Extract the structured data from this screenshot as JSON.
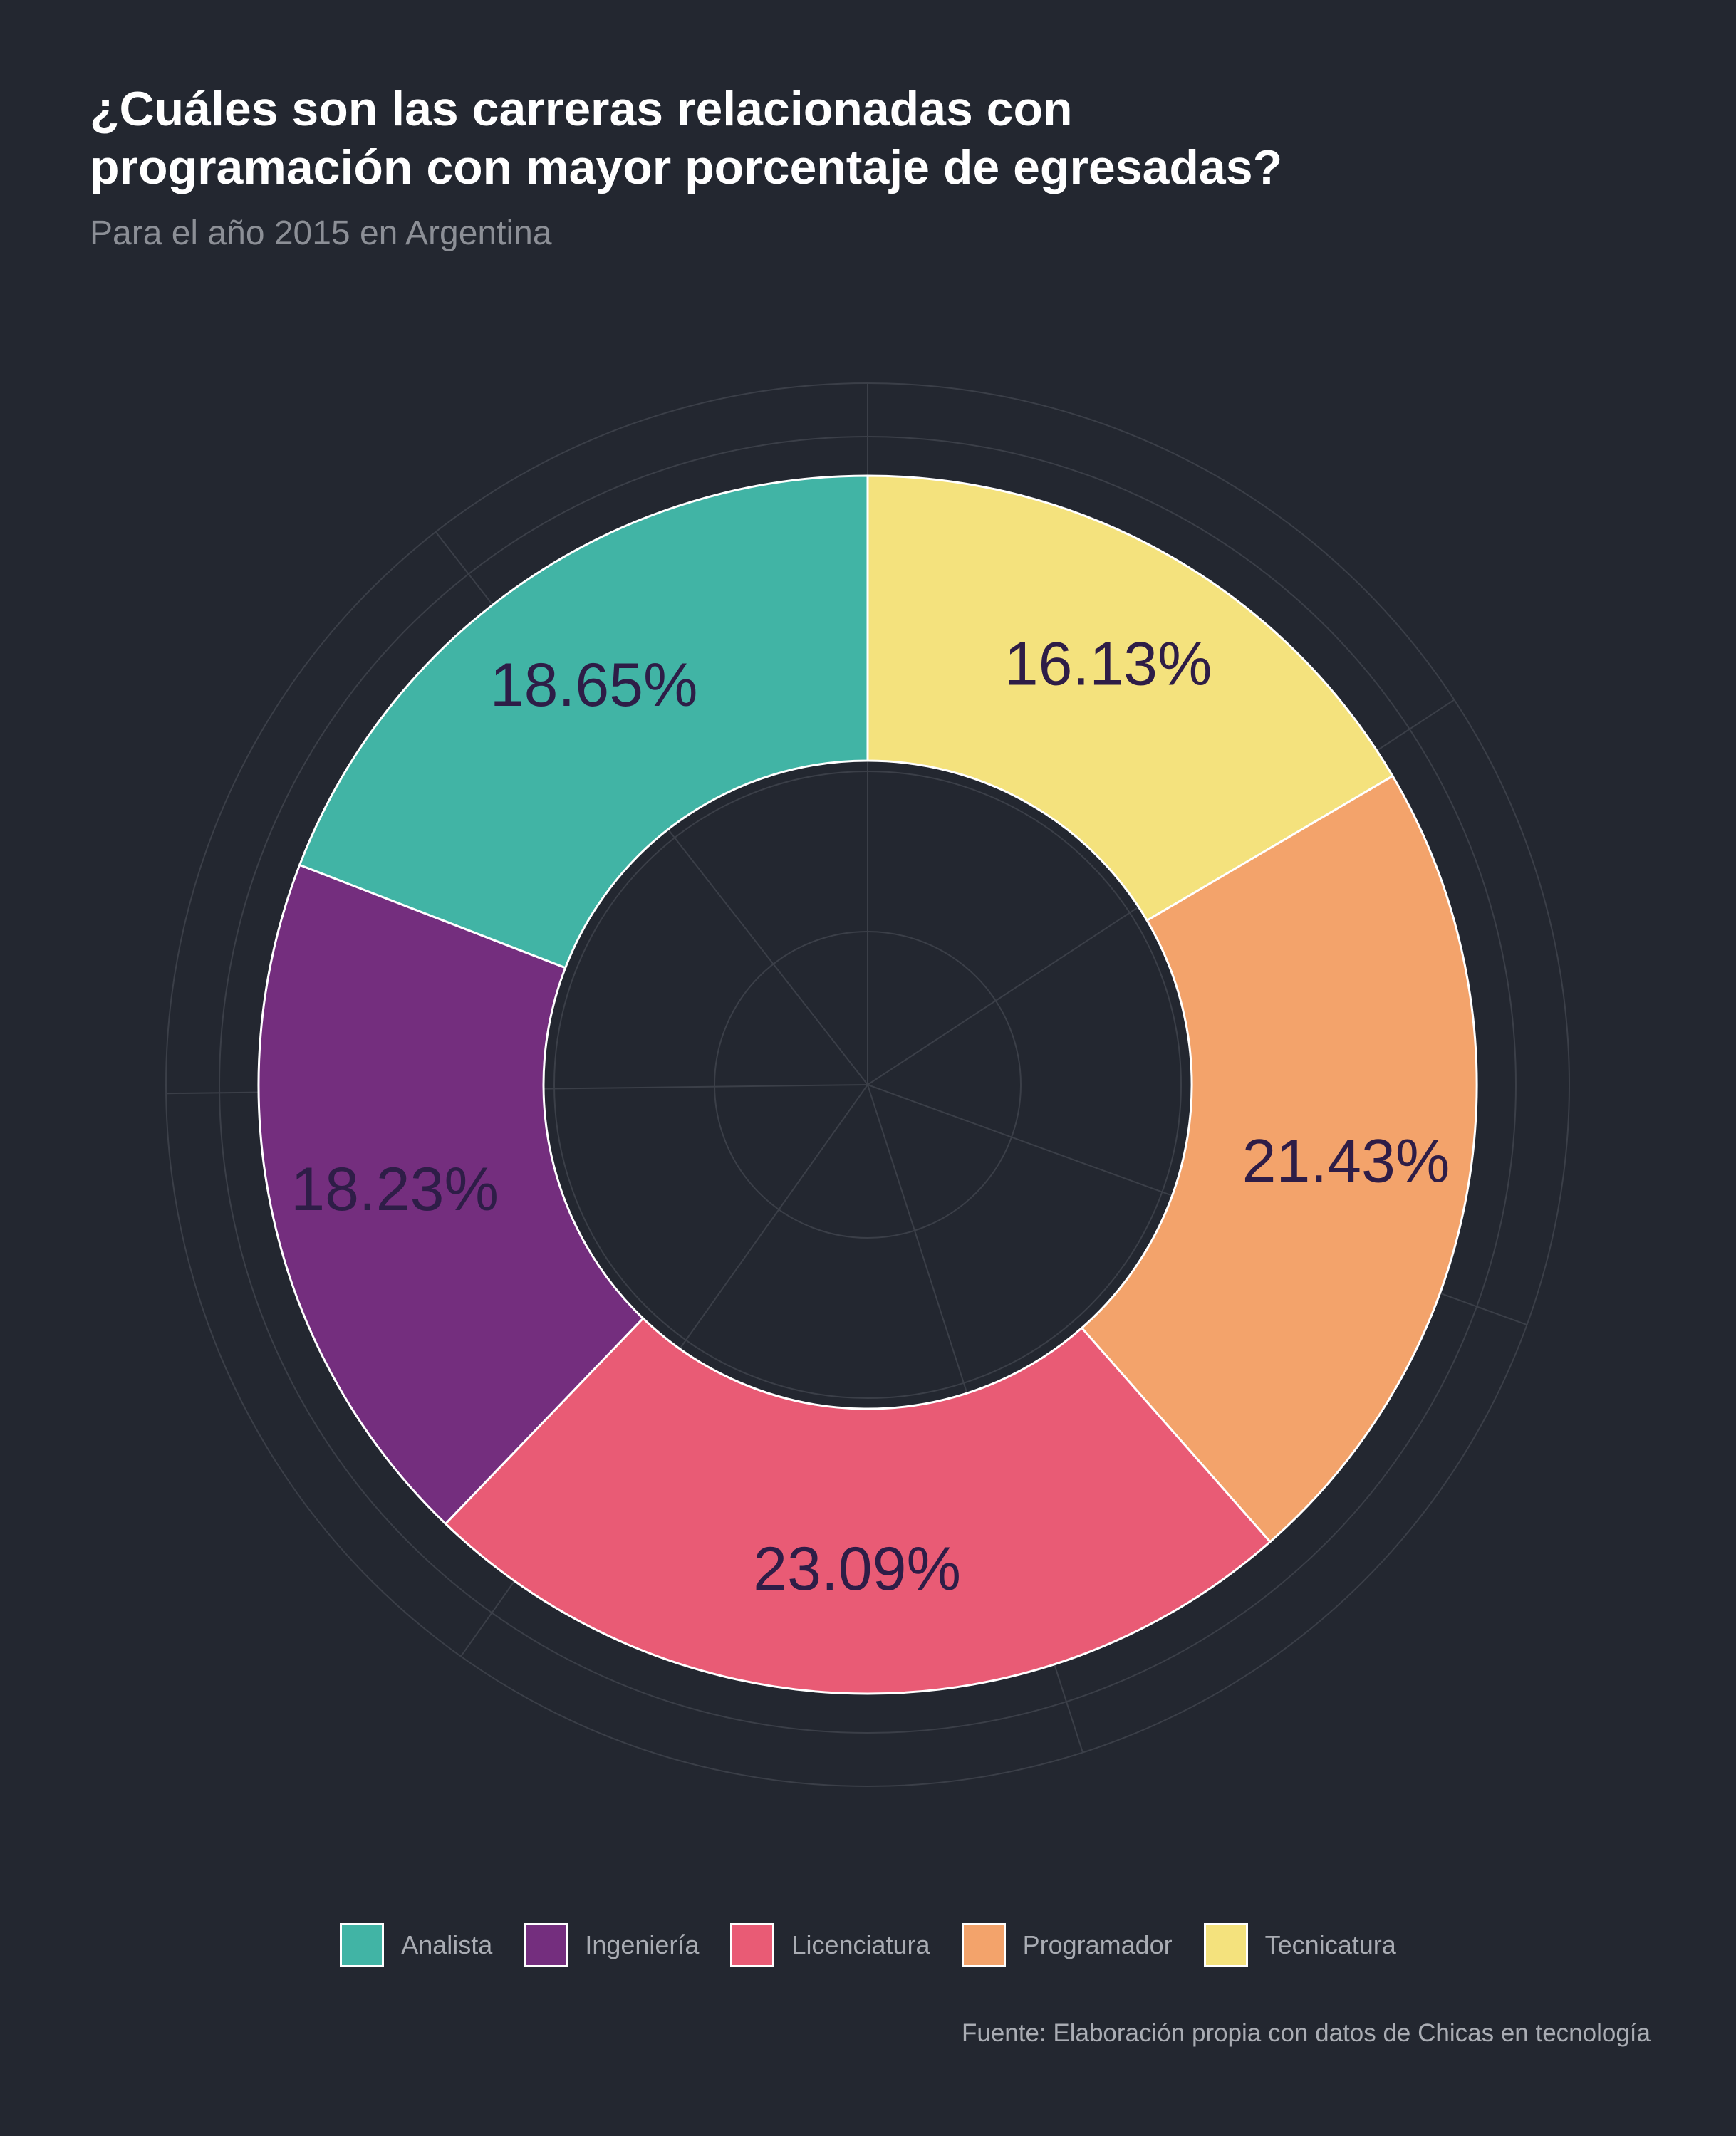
{
  "title_lines": [
    "¿Cuáles son las carreras relacionadas con",
    "programación con mayor porcentaje de egresadas?"
  ],
  "subtitle": "Para el año 2015 en Argentina",
  "caption": "Fuente: Elaboración propia con datos de Chicas en tecnología",
  "chart_data": {
    "type": "pie",
    "title": "¿Cuáles son las carreras relacionadas con programación con mayor porcentaje de egresadas?",
    "subtitle": "Para el año 2015 en Argentina",
    "legend_position": "bottom",
    "grid": true,
    "slices": [
      {
        "name": "Tecnicatura",
        "value": 16.13,
        "label": "16.13%",
        "color": "#f4e27d"
      },
      {
        "name": "Programador",
        "value": 21.43,
        "label": "21.43%",
        "color": "#f3a36b"
      },
      {
        "name": "Licenciatura",
        "value": 23.09,
        "label": "23.09%",
        "color": "#e95b75"
      },
      {
        "name": "Ingeniería",
        "value": 18.23,
        "label": "18.23%",
        "color": "#742e7e"
      },
      {
        "name": "Analista",
        "value": 18.65,
        "label": "18.65%",
        "color": "#41b4a5"
      }
    ],
    "legend_order": [
      "Analista",
      "Ingeniería",
      "Licenciatura",
      "Programador",
      "Tecnicatura"
    ],
    "label_color": "#2e1d47"
  }
}
